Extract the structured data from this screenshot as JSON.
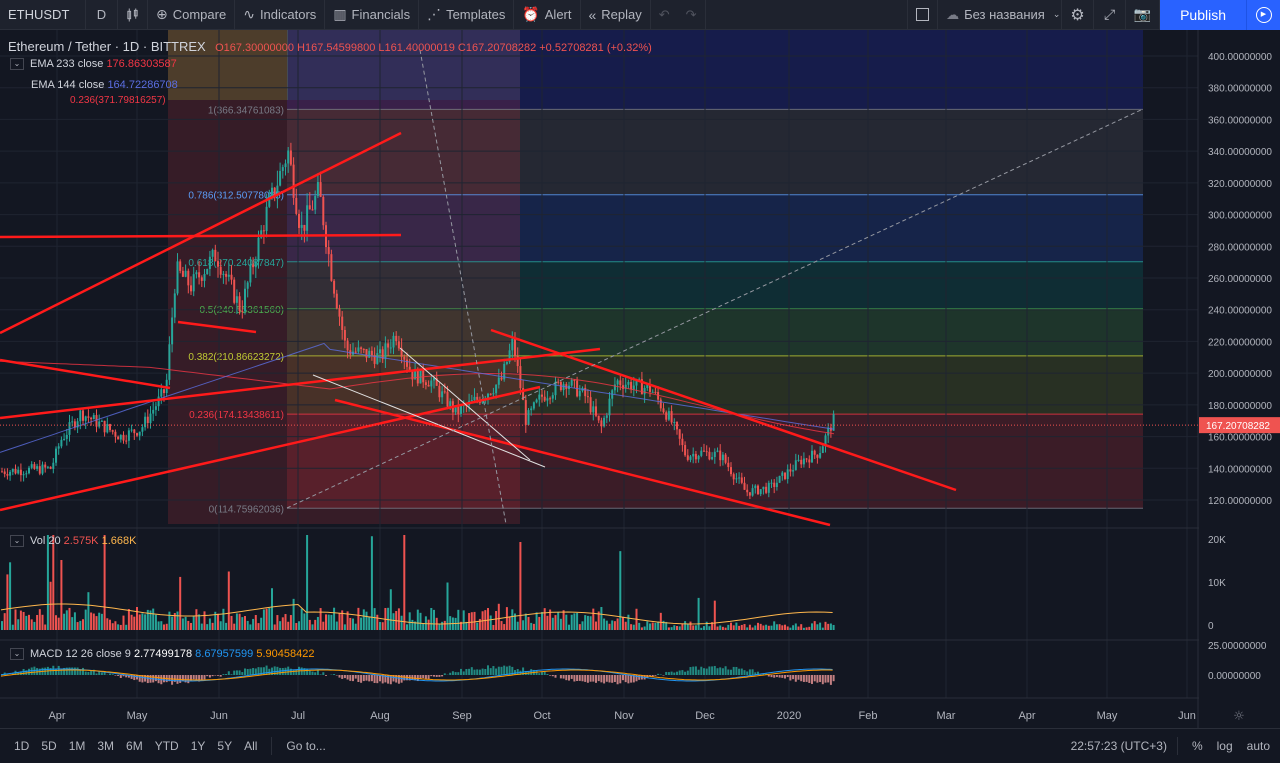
{
  "toolbar": {
    "symbol": "ETHUSDT",
    "interval": "D",
    "compare": "Compare",
    "indicators": "Indicators",
    "financials": "Financials",
    "templates": "Templates",
    "alert": "Alert",
    "replay": "Replay",
    "layout_name": "Без названия",
    "publish": "Publish"
  },
  "legend": {
    "symbol_title": "Ethereum / Tether · 1D · BITTREX",
    "ohlc": "O167.30000000 H167.54599800 L161.40000019 C167.20708282 +0.52708281 (+0.32%)",
    "ema233_label": "EMA 233 close",
    "ema233_value": "176.86303587",
    "ema144_label": "EMA 144 close",
    "ema144_value": "164.72286708",
    "fib_top_left": "0.236(371.79816257)"
  },
  "fib_levels": [
    {
      "label": "1(366.34761083)",
      "price": 366.35,
      "color": "#787b86"
    },
    {
      "label": "0.786(312.50778085)",
      "price": 312.51,
      "color": "#5b9cf6"
    },
    {
      "label": "0.618(270.24087847)",
      "price": 270.24,
      "color": "#26a69a"
    },
    {
      "label": "0.5(240.55361560)",
      "price": 240.55,
      "color": "#4caf50"
    },
    {
      "label": "0.382(210.86623272)",
      "price": 210.87,
      "color": "#c0ca33"
    },
    {
      "label": "0.236(174.13438611)",
      "price": 174.13,
      "color": "#f23645"
    },
    {
      "label": "0(114.75962036)",
      "price": 114.76,
      "color": "#787b86"
    }
  ],
  "price_axis": {
    "ticks": [
      "400.00000000",
      "380.00000000",
      "360.00000000",
      "340.00000000",
      "320.00000000",
      "300.00000000",
      "280.00000000",
      "260.00000000",
      "240.00000000",
      "220.00000000",
      "200.00000000",
      "180.00000000",
      "160.00000000",
      "140.00000000",
      "120.00000000"
    ],
    "current_price": "167.20708282"
  },
  "volume": {
    "label": "Vol 20",
    "v1": "2.575K",
    "v2": "1.668K",
    "axis": [
      "20K",
      "10K",
      "0"
    ]
  },
  "macd": {
    "label": "MACD 12 26 close 9",
    "v1": "2.77499178",
    "v2": "8.67957599",
    "v3": "5.90458422",
    "axis": [
      "25.00000000",
      "0.00000000"
    ]
  },
  "time_axis": [
    "Apr",
    "May",
    "Jun",
    "Jul",
    "Aug",
    "Sep",
    "Oct",
    "Nov",
    "Dec",
    "2020",
    "Feb",
    "Mar",
    "Apr",
    "May",
    "Jun"
  ],
  "bottom": {
    "ranges": [
      "1D",
      "5D",
      "1M",
      "3M",
      "6M",
      "YTD",
      "1Y",
      "5Y",
      "All"
    ],
    "goto": "Go to...",
    "time": "22:57:23 (UTC+3)",
    "percent": "%",
    "log": "log",
    "auto": "auto"
  },
  "colors": {
    "up": "#26a69a",
    "down": "#ef5350",
    "trend": "#ff1a1a",
    "ema233": "#f23645",
    "ema144": "#5b6ee1",
    "accent": "#2962ff"
  }
}
